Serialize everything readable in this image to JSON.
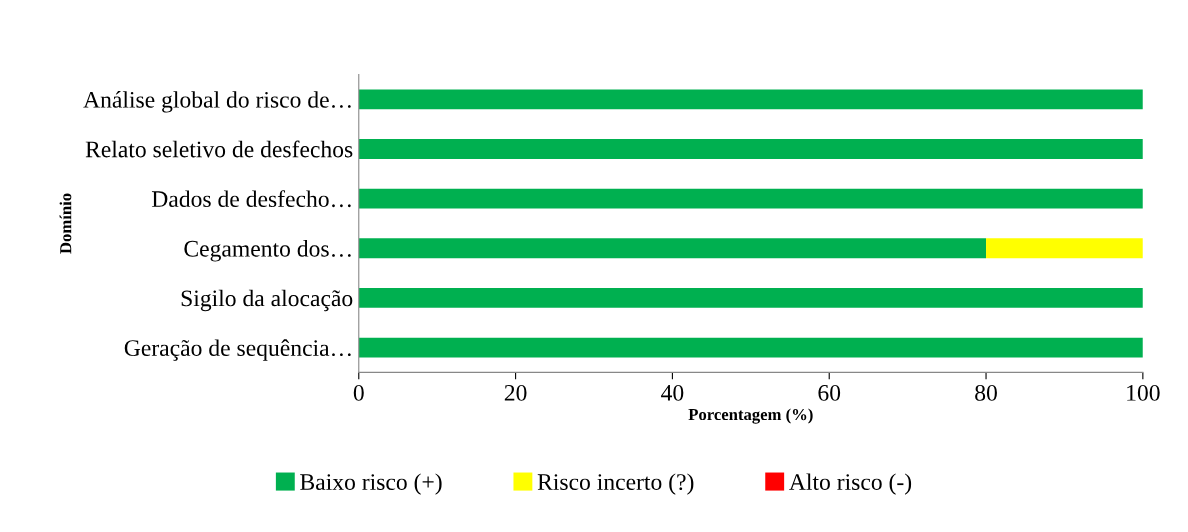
{
  "chart_data": {
    "type": "bar",
    "orientation": "horizontal",
    "stacked": true,
    "categories": [
      "Análise global do risco de…",
      "Relato seletivo de desfechos",
      "Dados de desfecho…",
      "Cegamento dos…",
      "Sigilo da alocação",
      "Geração de sequência…"
    ],
    "series": [
      {
        "name": "Baixo risco (+)",
        "color": "#00b050",
        "values": [
          100,
          100,
          100,
          80,
          100,
          100
        ]
      },
      {
        "name": "Risco incerto (?)",
        "color": "#ffff00",
        "values": [
          0,
          0,
          0,
          20,
          0,
          0
        ]
      },
      {
        "name": "Alto risco (-)",
        "color": "#ff0000",
        "values": [
          0,
          0,
          0,
          0,
          0,
          0
        ]
      }
    ],
    "xlabel": "Porcentagem (%)",
    "ylabel": "Domínio",
    "xlim": [
      0,
      100
    ],
    "xticks": [
      0,
      20,
      40,
      60,
      80,
      100
    ],
    "grid": false,
    "legend": "bottom"
  }
}
